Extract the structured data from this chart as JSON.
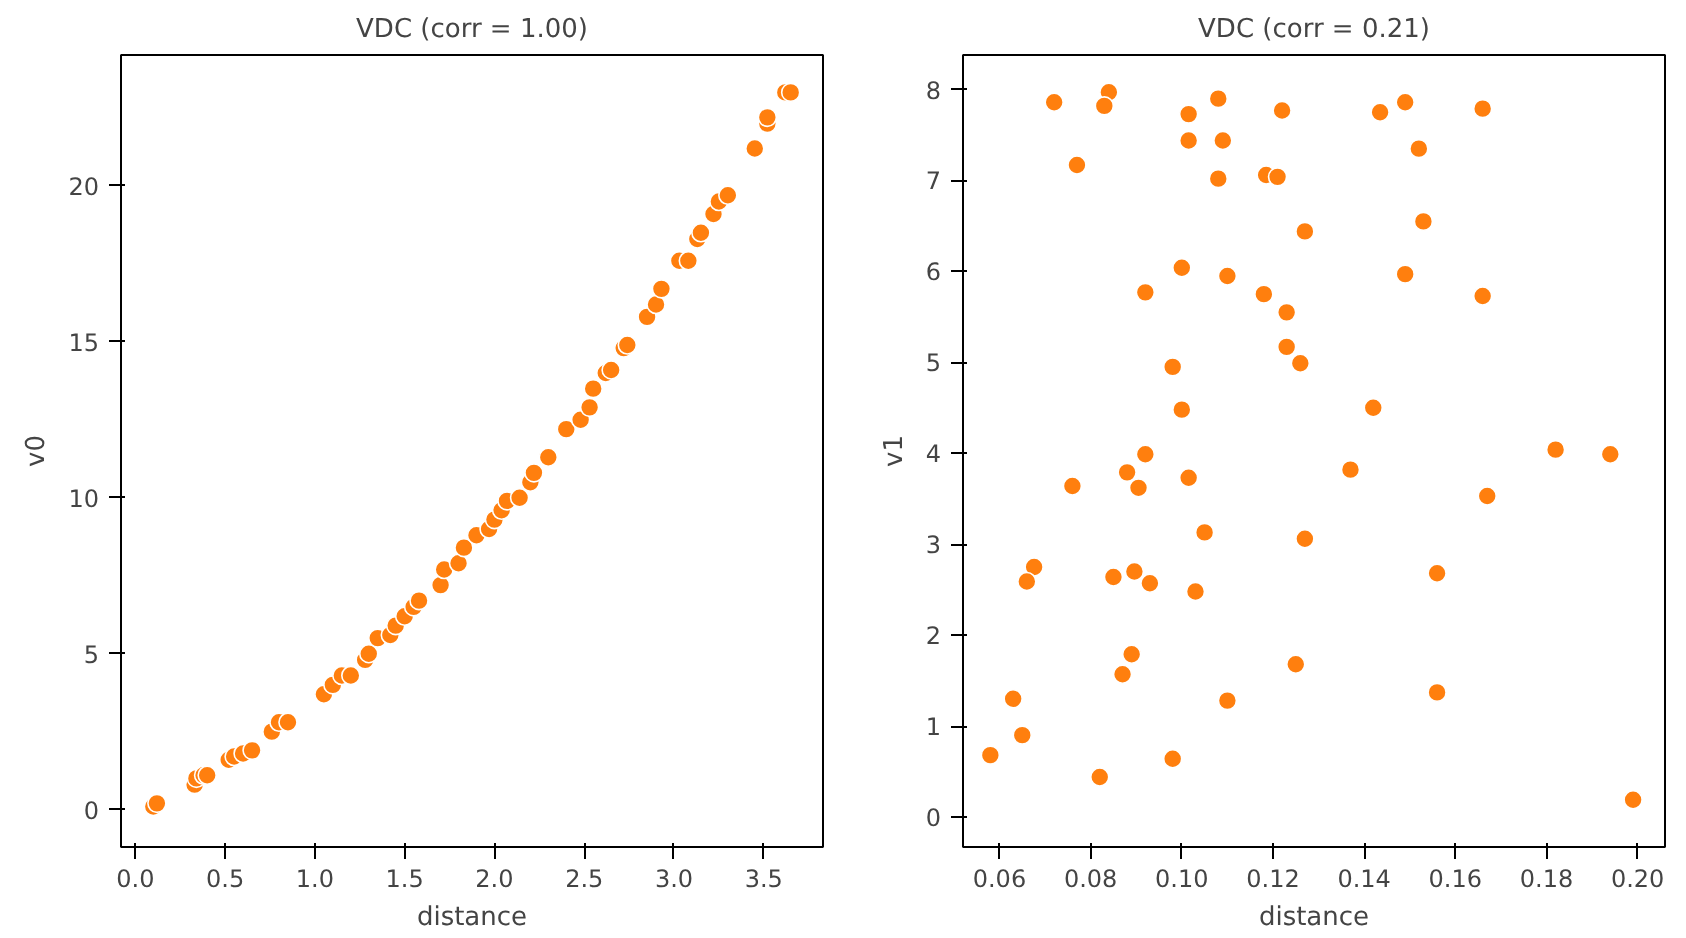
{
  "chart_data": [
    {
      "type": "scatter",
      "title": "VDC (corr = 1.00)",
      "xlabel": "distance",
      "ylabel": "v0",
      "grid": false,
      "marker": "circle",
      "xlim": [
        -0.08,
        3.83
      ],
      "ylim": [
        -1.2,
        24.2
      ],
      "xticks": [
        {
          "value": 0,
          "label": "0.0"
        },
        0.5,
        {
          "value": 1,
          "label": "1.0"
        },
        1.5,
        {
          "value": 2,
          "label": "2.0"
        },
        2.5,
        {
          "value": 3,
          "label": "3.0"
        },
        3.5
      ],
      "yticks": [
        0,
        5,
        10,
        15,
        20
      ],
      "series": [
        {
          "color": "#ff7f0e",
          "x": [
            0.1,
            0.12,
            0.33,
            0.34,
            0.38,
            0.4,
            0.52,
            0.55,
            0.6,
            0.65,
            0.76,
            0.8,
            0.85,
            1.05,
            1.1,
            1.15,
            1.2,
            1.28,
            1.3,
            1.35,
            1.42,
            1.45,
            1.5,
            1.55,
            1.58,
            1.7,
            1.72,
            1.8,
            1.83,
            1.9,
            1.97,
            2.0,
            2.04,
            2.07,
            2.14,
            2.2,
            2.22,
            2.3,
            2.4,
            2.48,
            2.53,
            2.55,
            2.62,
            2.65,
            2.72,
            2.74,
            2.85,
            2.9,
            2.93,
            3.03,
            3.08,
            3.13,
            3.15,
            3.22,
            3.25,
            3.3,
            3.45,
            3.52,
            3.52,
            3.62,
            3.65
          ],
          "values": [
            0.1,
            0.2,
            0.8,
            1.0,
            1.1,
            1.1,
            1.6,
            1.7,
            1.8,
            1.9,
            2.5,
            2.8,
            2.8,
            3.7,
            4.0,
            4.3,
            4.3,
            4.8,
            5.0,
            5.5,
            5.6,
            5.9,
            6.2,
            6.5,
            6.7,
            7.2,
            7.7,
            7.9,
            8.4,
            8.8,
            9.0,
            9.3,
            9.6,
            9.9,
            10.0,
            10.5,
            10.8,
            11.3,
            12.2,
            12.5,
            12.9,
            13.5,
            14.0,
            14.1,
            14.8,
            14.9,
            15.8,
            16.2,
            16.7,
            17.6,
            17.6,
            18.3,
            18.5,
            19.1,
            19.5,
            19.7,
            21.2,
            22.0,
            22.2,
            23.0,
            23.0
          ]
        }
      ]
    },
    {
      "type": "scatter",
      "title": "VDC (corr = 0.21)",
      "xlabel": "distance",
      "ylabel": "v1",
      "grid": false,
      "marker": "circle",
      "xlim": [
        0.052,
        0.206
      ],
      "ylim": [
        -0.33,
        8.38
      ],
      "xticks": [
        0.06,
        0.08,
        {
          "value": 0.1,
          "label": "0.10"
        },
        0.12,
        0.14,
        0.16,
        0.18,
        {
          "value": 0.2,
          "label": "0.20"
        }
      ],
      "yticks": [
        0,
        1,
        2,
        3,
        4,
        5,
        6,
        7,
        8
      ],
      "series": [
        {
          "color": "#ff7f0e",
          "x": [
            0.072,
            0.084,
            0.083,
            0.1015,
            0.108,
            0.122,
            0.1435,
            0.149,
            0.166,
            0.077,
            0.1015,
            0.109,
            0.152,
            0.108,
            0.1185,
            0.121,
            0.153,
            0.127,
            0.1,
            0.11,
            0.149,
            0.092,
            0.118,
            0.166,
            0.123,
            0.123,
            0.126,
            0.098,
            0.1,
            0.142,
            0.182,
            0.194,
            0.092,
            0.076,
            0.088,
            0.0905,
            0.1015,
            0.137,
            0.167,
            0.105,
            0.127,
            0.0676,
            0.066,
            0.085,
            0.0896,
            0.093,
            0.103,
            0.156,
            0.089,
            0.087,
            0.125,
            0.063,
            0.11,
            0.156,
            0.065,
            0.058,
            0.098,
            0.082,
            0.199
          ],
          "values": [
            7.86,
            7.97,
            7.82,
            7.73,
            7.9,
            7.77,
            7.75,
            7.86,
            7.79,
            7.17,
            7.44,
            7.44,
            7.35,
            7.02,
            7.06,
            7.04,
            6.55,
            6.44,
            6.04,
            5.95,
            5.97,
            5.77,
            5.75,
            5.73,
            5.55,
            5.17,
            4.99,
            4.95,
            4.48,
            4.5,
            4.04,
            3.99,
            3.99,
            3.64,
            3.79,
            3.62,
            3.73,
            3.82,
            3.53,
            3.13,
            3.06,
            2.75,
            2.59,
            2.64,
            2.7,
            2.57,
            2.48,
            2.68,
            1.79,
            1.57,
            1.68,
            1.3,
            1.28,
            1.37,
            0.9,
            0.68,
            0.64,
            0.44,
            0.19
          ]
        }
      ]
    }
  ]
}
